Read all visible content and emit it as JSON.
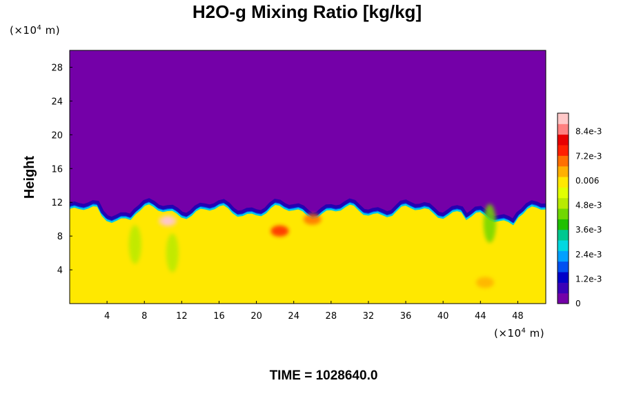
{
  "chart_data": {
    "type": "heatmap",
    "title": "H2O-g Mixing Ratio [kg/kg]",
    "ylabel": "Height",
    "x_unit": {
      "prefix": "(×10",
      "exp": "4",
      "suffix": " m)"
    },
    "y_unit": {
      "prefix": "(×10",
      "exp": "4",
      "suffix": " m)"
    },
    "xlim": [
      0,
      51
    ],
    "ylim": [
      0,
      30
    ],
    "x_ticks": [
      {
        "value": 4,
        "label": "4"
      },
      {
        "value": 8,
        "label": "8"
      },
      {
        "value": 12,
        "label": "12"
      },
      {
        "value": 16,
        "label": "16"
      },
      {
        "value": 20,
        "label": "20"
      },
      {
        "value": 24,
        "label": "24"
      },
      {
        "value": 28,
        "label": "28"
      },
      {
        "value": 32,
        "label": "32"
      },
      {
        "value": 36,
        "label": "36"
      },
      {
        "value": 40,
        "label": "40"
      },
      {
        "value": 44,
        "label": "44"
      },
      {
        "value": 48,
        "label": "48"
      }
    ],
    "y_ticks": [
      {
        "value": 4,
        "label": "4"
      },
      {
        "value": 8,
        "label": "8"
      },
      {
        "value": 12,
        "label": "12"
      },
      {
        "value": 16,
        "label": "16"
      },
      {
        "value": 20,
        "label": "20"
      },
      {
        "value": 24,
        "label": "24"
      },
      {
        "value": 28,
        "label": "28"
      }
    ],
    "colorbar": {
      "range": [
        0,
        0.0093
      ],
      "ticks": [
        {
          "value": 0,
          "label": "0"
        },
        {
          "value": 0.0012,
          "label": "1.2e-3"
        },
        {
          "value": 0.0024,
          "label": "2.4e-3"
        },
        {
          "value": 0.0036,
          "label": "3.6e-3"
        },
        {
          "value": 0.0048,
          "label": "4.8e-3"
        },
        {
          "value": 0.006,
          "label": "0.006"
        },
        {
          "value": 0.0072,
          "label": "7.2e-3"
        },
        {
          "value": 0.0084,
          "label": "8.4e-3"
        }
      ],
      "colors": [
        "#7400a8",
        "#3a00b8",
        "#0000c8",
        "#0050f0",
        "#00a0ff",
        "#00d8e0",
        "#00c890",
        "#20c000",
        "#70d800",
        "#b8ea00",
        "#e2ff00",
        "#ffe800",
        "#ffb000",
        "#ff7000",
        "#ff2000",
        "#e80000",
        "#ff8080",
        "#ffc8c8"
      ]
    },
    "field_description": {
      "upper_value": 0,
      "lower_value": 0.0061,
      "interface_height": 11,
      "anomalies": [
        {
          "x": 10.5,
          "y": 9.8,
          "value": 0.0092
        },
        {
          "x": 22.5,
          "y": 8.6,
          "value": 0.0076
        },
        {
          "x": 26,
          "y": 10,
          "value": 0.0072
        },
        {
          "x": 44.5,
          "y": 2.5,
          "value": 0.0066
        },
        {
          "x": 7,
          "y": 7,
          "value": 0.005
        },
        {
          "x": 11,
          "y": 6,
          "value": 0.0048
        },
        {
          "x": 45,
          "y": 9.5,
          "value": 0.0045
        }
      ]
    }
  },
  "footer": {
    "time_label": "TIME = 1028640.0"
  }
}
